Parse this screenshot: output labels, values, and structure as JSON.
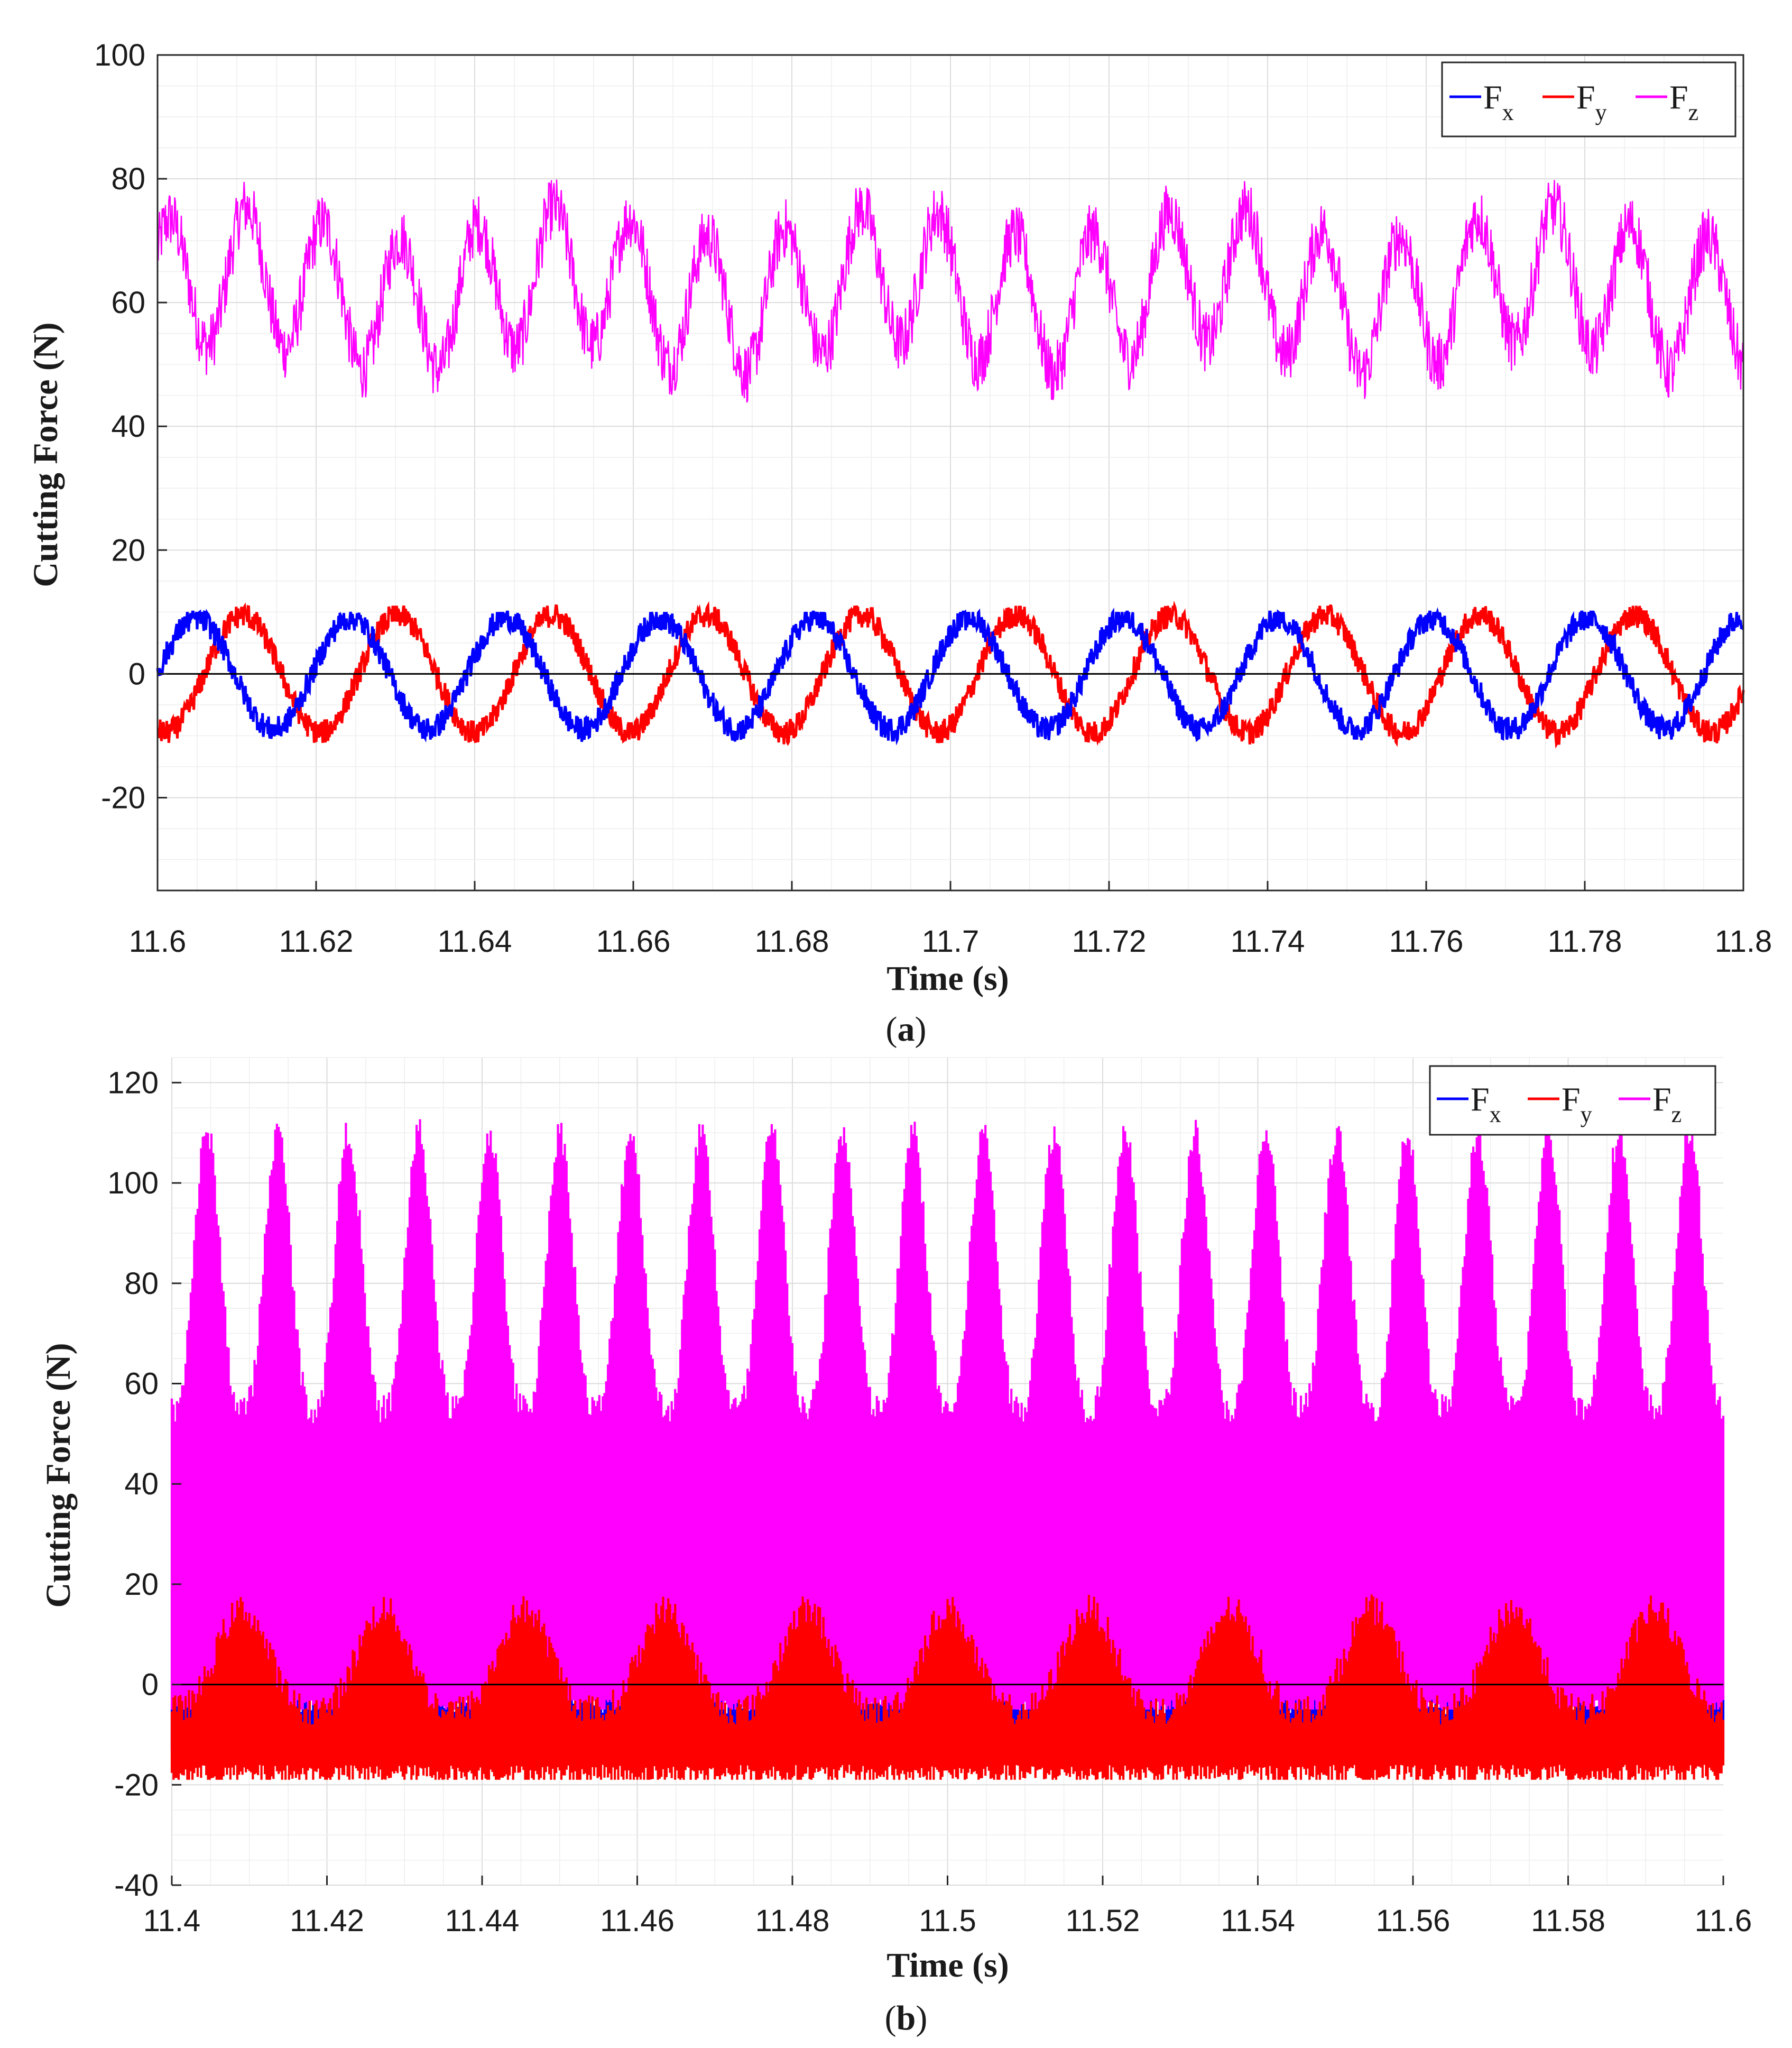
{
  "chart_data": [
    {
      "type": "line",
      "caption_letter": "a",
      "xlabel": "Time (s)",
      "ylabel": "Cutting Force (N)",
      "xlim": [
        11.6,
        11.8
      ],
      "ylim": [
        -35,
        100
      ],
      "xticks": [
        11.6,
        11.62,
        11.64,
        11.66,
        11.68,
        11.7,
        11.72,
        11.74,
        11.76,
        11.78,
        11.8
      ],
      "xtick_labels": [
        "11.6",
        "11.62",
        "11.64",
        "11.66",
        "11.68",
        "11.7",
        "11.72",
        "11.74",
        "11.76",
        "11.78",
        "11.8"
      ],
      "yticks": [
        -20,
        0,
        20,
        40,
        60,
        80,
        100
      ],
      "ytick_labels": [
        "-20",
        "0",
        "20",
        "40",
        "60",
        "80",
        "100"
      ],
      "grid": true,
      "legend_position": "top-right",
      "zero_line": true,
      "series": [
        {
          "name": "F",
          "subscript": "x",
          "color": "#0000ff",
          "mean": 0,
          "amplitude": 9,
          "period_s": 0.0195,
          "phase": 0.0,
          "noise": 2,
          "min": -11,
          "max": 10
        },
        {
          "name": "F",
          "subscript": "y",
          "color": "#ff0000",
          "mean": 0,
          "amplitude": 9.5,
          "period_s": 0.0195,
          "phase": -1.9,
          "noise": 2,
          "min": -12,
          "max": 11
        },
        {
          "name": "F",
          "subscript": "z",
          "color": "#ff00ff",
          "mean": 62,
          "amplitude": 11,
          "period_s": 0.0097,
          "phase": 0.6,
          "noise": 5,
          "min": 41,
          "max": 86
        }
      ]
    },
    {
      "type": "line",
      "caption_letter": "b",
      "xlabel": "Time (s)",
      "ylabel": "Cutting Force (N)",
      "xlim": [
        11.4,
        11.6
      ],
      "ylim": [
        -40,
        125
      ],
      "xticks": [
        11.4,
        11.42,
        11.44,
        11.46,
        11.48,
        11.5,
        11.52,
        11.54,
        11.56,
        11.58,
        11.6
      ],
      "xtick_labels": [
        "11.4",
        "11.42",
        "11.44",
        "11.46",
        "11.48",
        "11.5",
        "11.52",
        "11.54",
        "11.56",
        "11.58",
        "11.6"
      ],
      "yticks": [
        -40,
        -20,
        0,
        20,
        40,
        60,
        80,
        100,
        120
      ],
      "ytick_labels": [
        "-40",
        "-20",
        "0",
        "20",
        "40",
        "60",
        "80",
        "100",
        "120"
      ],
      "grid": true,
      "legend_position": "top-right",
      "zero_line": true,
      "series": [
        {
          "name": "F",
          "subscript": "x",
          "color": "#0000ff",
          "low_min": -14,
          "low_max": -3,
          "high_max": 17,
          "period_s": 0.0182,
          "min": -15,
          "max": 17
        },
        {
          "name": "F",
          "subscript": "z",
          "color": "#ff00ff",
          "low_min": -5,
          "low_max": 55,
          "high_max": 110,
          "period_s": 0.0091,
          "min": -5,
          "max": 117
        },
        {
          "name": "F",
          "subscript": "y",
          "color": "#ff0000",
          "low_min": -18,
          "low_max": -5,
          "high_max": 15,
          "period_s": 0.0182,
          "min": -19,
          "max": 20
        }
      ]
    }
  ]
}
